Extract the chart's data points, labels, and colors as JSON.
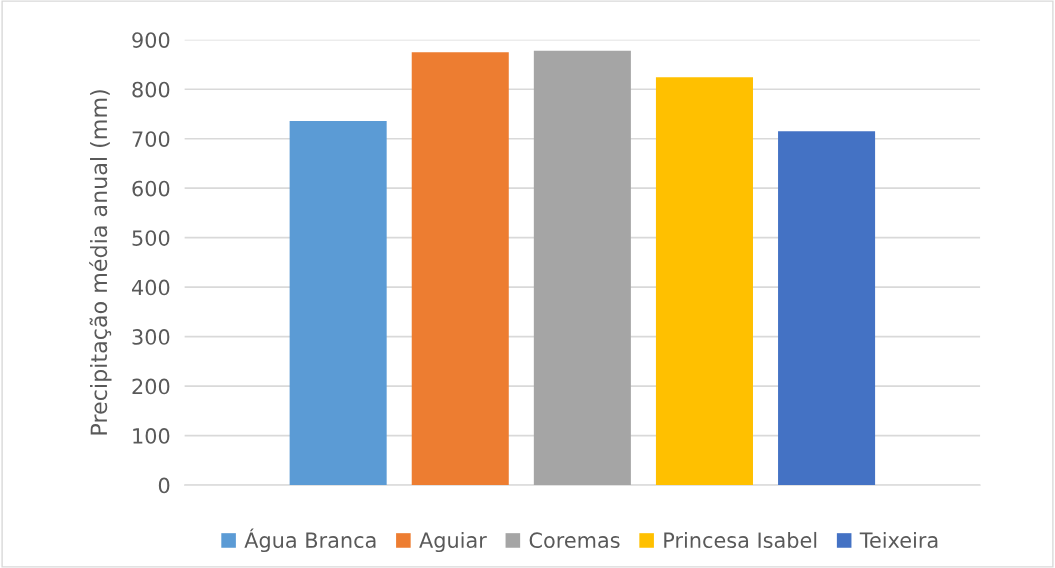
{
  "chart_data": {
    "type": "bar",
    "ylabel": "Precipitação média anual (mm)",
    "categories": [
      null
    ],
    "series": [
      {
        "name": "Água Branca",
        "color": "#5b9bd5",
        "values": [
          736
        ]
      },
      {
        "name": "Aguiar",
        "color": "#ed7d31",
        "values": [
          875
        ]
      },
      {
        "name": "Coremas",
        "color": "#a5a5a5",
        "values": [
          878
        ]
      },
      {
        "name": "Princesa Isabel",
        "color": "#ffc000",
        "values": [
          824
        ]
      },
      {
        "name": "Teixeira",
        "color": "#4472c4",
        "values": [
          715
        ]
      }
    ],
    "ylim": [
      0,
      900
    ],
    "yticks": [
      0,
      100,
      200,
      300,
      400,
      500,
      600,
      700,
      800,
      900
    ],
    "grid": "y",
    "legend": "bottom"
  }
}
